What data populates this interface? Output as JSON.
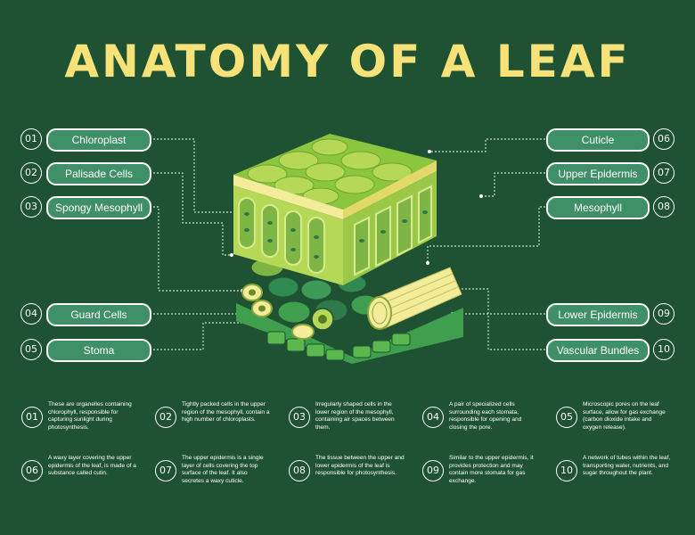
{
  "title": "ANATOMY OF A LEAF",
  "labels": [
    {
      "num": "01",
      "text": "Chloroplast"
    },
    {
      "num": "02",
      "text": "Palisade Cells"
    },
    {
      "num": "03",
      "text": "Spongy Mesophyll"
    },
    {
      "num": "04",
      "text": "Guard Cells"
    },
    {
      "num": "05",
      "text": "Stoma"
    },
    {
      "num": "06",
      "text": "Cuticle"
    },
    {
      "num": "07",
      "text": "Upper Epidermis"
    },
    {
      "num": "08",
      "text": "Mesophyll"
    },
    {
      "num": "09",
      "text": "Lower Epidermis"
    },
    {
      "num": "10",
      "text": "Vascular Bundles"
    }
  ],
  "descriptions": [
    {
      "num": "01",
      "text": "These are organelles containing chlorophyll, responsible for capturing sunlight during photosynthesis."
    },
    {
      "num": "02",
      "text": "Tightly packed cells in the upper region of the mesophyll, contain a high number of chloroplasts."
    },
    {
      "num": "03",
      "text": "Irregularly shaped cells in the lower region of the mesophyll, containing air spaces between them."
    },
    {
      "num": "04",
      "text": "A pair of specialized cells surrounding each stomata, responsible for opening and closing the pore."
    },
    {
      "num": "05",
      "text": "Microscopic pores on the leaf surface, allow for gas exchange (carbon dioxide intake and oxygen release)."
    },
    {
      "num": "06",
      "text": "A waxy layer covering the upper epidermis of the leaf, is made of a substance called cutin."
    },
    {
      "num": "07",
      "text": "The upper epidermis is a single layer of cells covering the top surface of the leaf. It also secretes a waxy cuticle."
    },
    {
      "num": "08",
      "text": "The tissue between the upper and lower epidermis of the leaf is responsible for photosynthesis."
    },
    {
      "num": "09",
      "text": "Similar to the upper epidermis, it provides protection and may contain more stomata for gas exchange."
    },
    {
      "num": "10",
      "text": "A network of tubes within the leaf, transporting water, nutrients, and sugar throughout the plant."
    }
  ],
  "colors": {
    "background": "#1e5232",
    "title": "#f7e27a",
    "pill": "#3f9066",
    "cell_light": "#b5d957",
    "cell_mid": "#7fb544",
    "cell_dark": "#2f7a4a",
    "cuticle": "#f3ec9a"
  }
}
